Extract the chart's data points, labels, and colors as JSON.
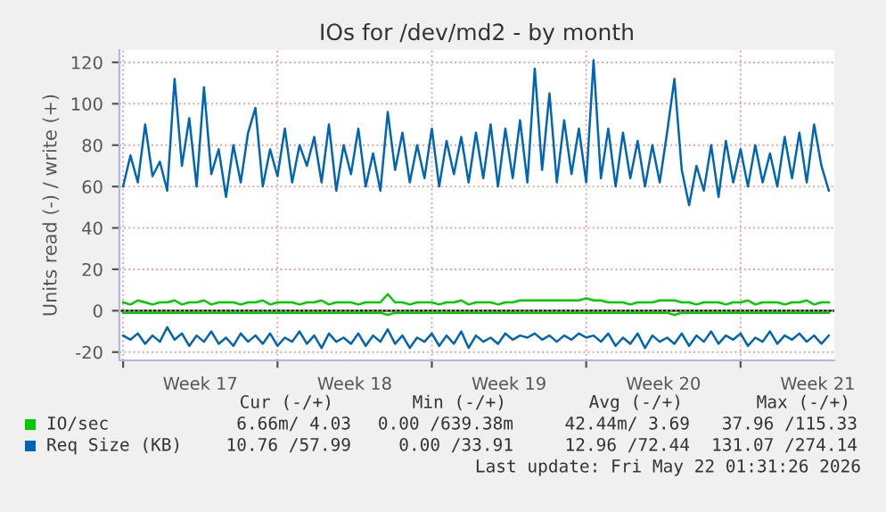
{
  "chart_data": {
    "type": "line",
    "title": "IOs for /dev/md2 - by month",
    "ylabel": "Units read (-) / write (+)",
    "x": [
      "2026-04-20T00:00",
      "2026-04-20T08:00",
      "2026-04-20T16:00",
      "2026-04-21T00:00",
      "2026-04-21T08:00",
      "2026-04-21T16:00",
      "2026-04-22T00:00",
      "2026-04-22T08:00",
      "2026-04-22T16:00",
      "2026-04-23T00:00",
      "2026-04-23T08:00",
      "2026-04-23T16:00",
      "2026-04-24T00:00",
      "2026-04-24T08:00",
      "2026-04-24T16:00",
      "2026-04-25T00:00",
      "2026-04-25T08:00",
      "2026-04-25T16:00",
      "2026-04-26T00:00",
      "2026-04-26T08:00",
      "2026-04-26T16:00",
      "2026-04-27T00:00",
      "2026-04-27T08:00",
      "2026-04-27T16:00",
      "2026-04-28T00:00",
      "2026-04-28T08:00",
      "2026-04-28T16:00",
      "2026-04-29T00:00",
      "2026-04-29T08:00",
      "2026-04-29T16:00",
      "2026-04-30T00:00",
      "2026-04-30T08:00",
      "2026-04-30T16:00",
      "2026-05-01T00:00",
      "2026-05-01T08:00",
      "2026-05-01T16:00",
      "2026-05-02T00:00",
      "2026-05-02T08:00",
      "2026-05-02T16:00",
      "2026-05-03T00:00",
      "2026-05-03T08:00",
      "2026-05-03T16:00",
      "2026-05-04T00:00",
      "2026-05-04T08:00",
      "2026-05-04T16:00",
      "2026-05-05T00:00",
      "2026-05-05T08:00",
      "2026-05-05T16:00",
      "2026-05-06T00:00",
      "2026-05-06T08:00",
      "2026-05-06T16:00",
      "2026-05-07T00:00",
      "2026-05-07T08:00",
      "2026-05-07T16:00",
      "2026-05-08T00:00",
      "2026-05-08T08:00",
      "2026-05-08T16:00",
      "2026-05-09T00:00",
      "2026-05-09T08:00",
      "2026-05-09T16:00",
      "2026-05-10T00:00",
      "2026-05-10T08:00",
      "2026-05-10T16:00",
      "2026-05-11T00:00",
      "2026-05-11T08:00",
      "2026-05-11T16:00",
      "2026-05-12T00:00",
      "2026-05-12T08:00",
      "2026-05-12T16:00",
      "2026-05-13T00:00",
      "2026-05-13T08:00",
      "2026-05-13T16:00",
      "2026-05-14T00:00",
      "2026-05-14T08:00",
      "2026-05-14T16:00",
      "2026-05-15T00:00",
      "2026-05-15T08:00",
      "2026-05-15T16:00",
      "2026-05-16T00:00",
      "2026-05-16T08:00",
      "2026-05-16T16:00",
      "2026-05-17T00:00",
      "2026-05-17T08:00",
      "2026-05-17T16:00",
      "2026-05-18T00:00",
      "2026-05-18T08:00",
      "2026-05-18T16:00",
      "2026-05-19T00:00",
      "2026-05-19T08:00",
      "2026-05-19T16:00",
      "2026-05-20T00:00",
      "2026-05-20T08:00",
      "2026-05-20T16:00",
      "2026-05-21T00:00",
      "2026-05-21T08:00",
      "2026-05-21T16:00",
      "2026-05-22T00:00"
    ],
    "series": [
      {
        "color": "#00cc00",
        "values": [
          -1,
          -1,
          -1,
          -1,
          -1,
          -1,
          -1,
          -1,
          -1,
          -1,
          -1,
          -1,
          -1,
          -1,
          -1,
          -1,
          -1,
          -1,
          -1,
          -1,
          -1,
          -1,
          -1,
          -1,
          -1,
          -1,
          -1,
          -1,
          -1,
          -1,
          -1,
          -1,
          -1,
          -1,
          -1,
          -1,
          -2,
          -1,
          -1,
          -1,
          -1,
          -1,
          -1,
          -1,
          -1,
          -1,
          -1,
          -1,
          -1,
          -1,
          -1,
          -1,
          -1,
          -1,
          -1,
          -1,
          -1,
          -1,
          -1,
          -1,
          -1,
          -1,
          -1,
          -1,
          -1,
          -1,
          -1,
          -1,
          -1,
          -1,
          -1,
          -1,
          -1,
          -1,
          -1,
          -2,
          -1,
          -1,
          -1,
          -1,
          -1,
          -1,
          -1,
          -1,
          -1,
          -1,
          -1,
          -1,
          -1,
          -1,
          -1,
          -1,
          -1,
          -1,
          -1,
          -1,
          -1
        ]
      },
      {
        "name": "IO/sec",
        "color": "#00cc00",
        "values": [
          4,
          3,
          5,
          4,
          3,
          4,
          4,
          5,
          3,
          4,
          4,
          5,
          3,
          4,
          4,
          4,
          3,
          4,
          4,
          5,
          3,
          4,
          4,
          4,
          3,
          4,
          4,
          5,
          3,
          4,
          4,
          4,
          3,
          4,
          4,
          4,
          8,
          4,
          4,
          3,
          4,
          4,
          4,
          3,
          4,
          4,
          5,
          3,
          4,
          4,
          4,
          3,
          4,
          4,
          5,
          5,
          5,
          5,
          5,
          5,
          5,
          5,
          5,
          6,
          5,
          5,
          4,
          4,
          4,
          3,
          4,
          4,
          4,
          5,
          5,
          5,
          4,
          4,
          3,
          4,
          4,
          4,
          3,
          4,
          4,
          5,
          3,
          4,
          4,
          4,
          3,
          4,
          4,
          5,
          3,
          4,
          4
        ]
      },
      {
        "color": "#0066b3",
        "values": [
          -12,
          -14,
          -11,
          -16,
          -12,
          -15,
          -8,
          -14,
          -11,
          -17,
          -12,
          -15,
          -10,
          -16,
          -13,
          -17,
          -11,
          -15,
          -12,
          -16,
          -11,
          -17,
          -13,
          -15,
          -10,
          -16,
          -12,
          -18,
          -11,
          -15,
          -13,
          -16,
          -11,
          -17,
          -12,
          -15,
          -9,
          -16,
          -12,
          -18,
          -13,
          -15,
          -11,
          -17,
          -12,
          -16,
          -10,
          -18,
          -12,
          -15,
          -13,
          -16,
          -11,
          -14,
          -12,
          -13,
          -11,
          -14,
          -12,
          -15,
          -12,
          -14,
          -11,
          -13,
          -12,
          -15,
          -11,
          -17,
          -13,
          -16,
          -11,
          -18,
          -12,
          -15,
          -13,
          -16,
          -11,
          -17,
          -12,
          -15,
          -10,
          -16,
          -12,
          -14,
          -11,
          -17,
          -13,
          -15,
          -10,
          -16,
          -12,
          -14,
          -11,
          -15,
          -12,
          -16,
          -12
        ]
      },
      {
        "name": "Req Size (KB)",
        "color": "#0066b3",
        "values": [
          60,
          75,
          62,
          90,
          65,
          72,
          58,
          112,
          70,
          93,
          60,
          108,
          66,
          78,
          55,
          80,
          62,
          86,
          98,
          60,
          78,
          65,
          88,
          62,
          80,
          70,
          84,
          62,
          90,
          58,
          80,
          66,
          88,
          60,
          76,
          58,
          96,
          68,
          86,
          62,
          80,
          64,
          88,
          60,
          82,
          66,
          84,
          62,
          86,
          64,
          90,
          60,
          88,
          64,
          92,
          62,
          117,
          68,
          105,
          62,
          92,
          66,
          88,
          62,
          121,
          64,
          88,
          60,
          86,
          64,
          82,
          60,
          80,
          62,
          86,
          112,
          68,
          51,
          70,
          58,
          80,
          55,
          82,
          62,
          78,
          60,
          80,
          62,
          76,
          60,
          84,
          64,
          86,
          62,
          90,
          70,
          58
        ]
      }
    ],
    "xlim": [
      "2026-04-19T20:00",
      "2026-05-22T06:00"
    ],
    "xticks": [
      {
        "value": "2026-04-20T00:00",
        "label": null
      },
      {
        "value": "2026-04-23T12:00",
        "label": "Week 17"
      },
      {
        "value": "2026-04-27T00:00",
        "label": null
      },
      {
        "value": "2026-04-30T12:00",
        "label": "Week 18"
      },
      {
        "value": "2026-05-04T00:00",
        "label": null
      },
      {
        "value": "2026-05-07T12:00",
        "label": "Week 19"
      },
      {
        "value": "2026-05-11T00:00",
        "label": null
      },
      {
        "value": "2026-05-14T12:00",
        "label": "Week 20"
      },
      {
        "value": "2026-05-18T00:00",
        "label": null
      },
      {
        "value": "2026-05-21T12:00",
        "label": "Week 21"
      }
    ],
    "ylim": [
      -24,
      126
    ],
    "yticks": [
      -20,
      0,
      20,
      40,
      60,
      80,
      100,
      120
    ],
    "grid": true,
    "legend": "bottom",
    "ref_lines": [
      {
        "axis": "y",
        "value": 0,
        "color": "#000000"
      }
    ],
    "annotations": [
      "Cur (-/+)",
      "Min (-/+)",
      "Avg (-/+)",
      "Max (-/+)",
      "6.66m/ 4.03",
      "0.00 /639.38m",
      "42.44m/ 3.69",
      "37.96 /115.33",
      "10.76 /57.99",
      "0.00 /33.91",
      "12.96 /72.44",
      "131.07 /274.14",
      "Last update: Fri May 22 01:31:26 2026"
    ]
  }
}
